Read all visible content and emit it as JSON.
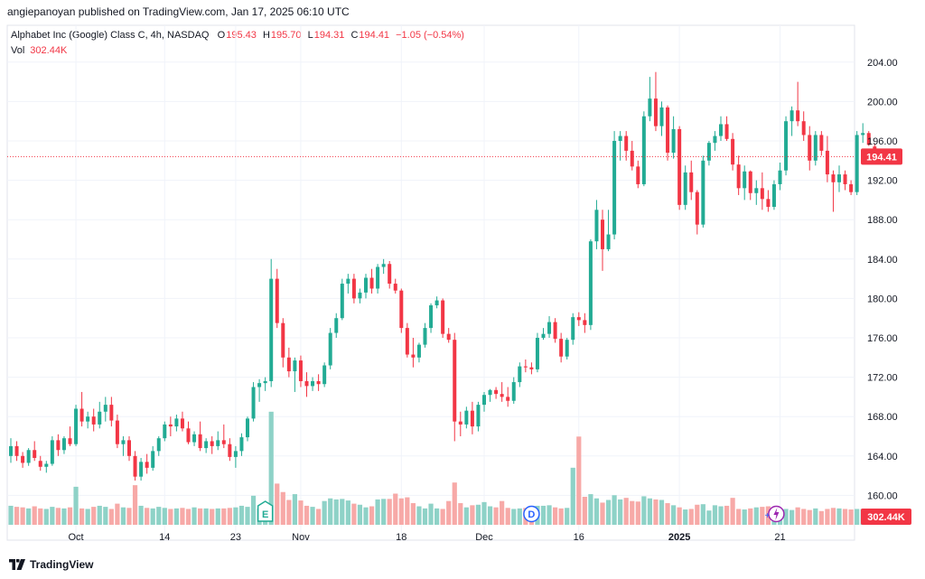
{
  "header": {
    "published": "angiepanoyan published on TradingView.com, Jan 17, 2025 06:10 UTC"
  },
  "legend": {
    "symbol": "Alphabet Inc (Google) Class C, 4h, NASDAQ",
    "o_key": "O",
    "o_val": "195.43",
    "h_key": "H",
    "h_val": "195.70",
    "l_key": "L",
    "l_val": "194.31",
    "c_key": "C",
    "c_val": "194.41",
    "change": "−1.05 (−0.54%)",
    "vol_key": "Vol",
    "vol_val": "302.44K"
  },
  "footer": {
    "brand": "TradingView"
  },
  "colors": {
    "up": "#22ab94",
    "down": "#f23645",
    "vol_up": "#8ed2c7",
    "vol_down": "#f7a9a7"
  },
  "chart_data": {
    "type": "candlestick",
    "symbol": "GOOG",
    "interval": "4h",
    "ylim": [
      157.6,
      206.2
    ],
    "y_ticks": [
      "204.00",
      "200.00",
      "196.00",
      "192.00",
      "188.00",
      "184.00",
      "180.00",
      "176.00",
      "172.00",
      "168.00",
      "164.00",
      "160.00"
    ],
    "x_ticks": [
      {
        "label": "Oct",
        "bar": 11
      },
      {
        "label": "14",
        "bar": 26
      },
      {
        "label": "23",
        "bar": 38
      },
      {
        "label": "Nov",
        "bar": 49
      },
      {
        "label": "18",
        "bar": 66
      },
      {
        "label": "Dec",
        "bar": 80
      },
      {
        "label": "16",
        "bar": 96
      },
      {
        "label": "2025",
        "bar": 113,
        "bold": true
      },
      {
        "label": "21",
        "bar": 130
      }
    ],
    "last_price": "194.41",
    "last_price_value": 194.41,
    "last_volume": "302.44K",
    "markers": [
      {
        "label": "E",
        "bar": 43,
        "kind": "earnings"
      },
      {
        "label": "D",
        "bar": 88,
        "kind": "dividend"
      },
      {
        "label": "⚡",
        "bar": 128,
        "kind": "event"
      }
    ],
    "ohlc": [
      [
        164.0,
        165.8,
        163.3,
        165.0
      ],
      [
        165.0,
        165.5,
        163.5,
        164.0
      ],
      [
        164.0,
        164.4,
        162.8,
        163.3
      ],
      [
        163.3,
        164.8,
        163.0,
        164.6
      ],
      [
        164.6,
        165.5,
        163.5,
        163.8
      ],
      [
        163.5,
        164.0,
        162.5,
        162.9
      ],
      [
        162.9,
        163.5,
        162.3,
        163.2
      ],
      [
        163.2,
        166.0,
        163.0,
        165.6
      ],
      [
        165.6,
        166.2,
        164.0,
        164.6
      ],
      [
        164.6,
        166.0,
        164.2,
        165.8
      ],
      [
        165.8,
        167.0,
        165.0,
        165.2
      ],
      [
        165.2,
        169.2,
        165.0,
        168.8
      ],
      [
        168.8,
        170.5,
        167.0,
        167.5
      ],
      [
        167.5,
        168.5,
        166.8,
        168.0
      ],
      [
        168.0,
        168.8,
        166.5,
        167.2
      ],
      [
        167.2,
        169.5,
        166.8,
        168.5
      ],
      [
        168.5,
        170.0,
        167.5,
        169.2
      ],
      [
        169.2,
        170.0,
        167.0,
        167.6
      ],
      [
        167.6,
        168.2,
        164.8,
        165.2
      ],
      [
        165.2,
        166.0,
        164.0,
        165.6
      ],
      [
        165.6,
        166.0,
        163.5,
        164.0
      ],
      [
        164.0,
        164.5,
        161.5,
        161.9
      ],
      [
        161.9,
        163.8,
        161.5,
        163.4
      ],
      [
        163.4,
        164.2,
        162.2,
        162.8
      ],
      [
        162.8,
        165.0,
        162.5,
        164.5
      ],
      [
        164.5,
        166.0,
        164.0,
        165.8
      ],
      [
        165.8,
        167.5,
        165.5,
        167.2
      ],
      [
        167.2,
        168.0,
        166.0,
        167.0
      ],
      [
        167.0,
        168.2,
        166.5,
        167.8
      ],
      [
        167.8,
        168.5,
        166.5,
        166.8
      ],
      [
        166.8,
        167.5,
        165.2,
        165.4
      ],
      [
        165.4,
        166.5,
        165.0,
        166.2
      ],
      [
        166.2,
        167.5,
        164.5,
        164.8
      ],
      [
        164.8,
        165.8,
        164.3,
        165.5
      ],
      [
        165.5,
        166.0,
        164.2,
        165.0
      ],
      [
        165.0,
        166.5,
        164.6,
        165.6
      ],
      [
        165.6,
        167.2,
        164.8,
        165.2
      ],
      [
        165.2,
        165.8,
        163.5,
        163.9
      ],
      [
        163.9,
        165.0,
        162.8,
        164.5
      ],
      [
        164.5,
        166.3,
        164.0,
        165.9
      ],
      [
        165.9,
        168.0,
        165.5,
        167.8
      ],
      [
        167.8,
        171.5,
        167.5,
        171.0
      ],
      [
        171.0,
        171.8,
        169.5,
        171.4
      ],
      [
        171.4,
        172.0,
        170.6,
        171.6
      ],
      [
        171.6,
        184.0,
        171.0,
        182.0
      ],
      [
        182.0,
        183.0,
        177.0,
        177.5
      ],
      [
        177.5,
        178.0,
        173.0,
        174.0
      ],
      [
        174.0,
        175.0,
        172.0,
        172.6
      ],
      [
        172.6,
        174.0,
        170.5,
        173.7
      ],
      [
        173.7,
        174.2,
        171.0,
        171.6
      ],
      [
        171.6,
        172.5,
        170.0,
        171.1
      ],
      [
        171.1,
        172.0,
        170.6,
        171.6
      ],
      [
        171.6,
        172.3,
        170.6,
        171.3
      ],
      [
        171.3,
        173.5,
        171.0,
        173.2
      ],
      [
        173.2,
        177.0,
        172.8,
        176.5
      ],
      [
        176.5,
        178.5,
        176.0,
        178.0
      ],
      [
        178.0,
        182.0,
        177.8,
        181.5
      ],
      [
        181.5,
        182.5,
        180.5,
        182.0
      ],
      [
        182.0,
        182.5,
        179.5,
        180.0
      ],
      [
        180.0,
        181.0,
        179.5,
        180.6
      ],
      [
        180.6,
        182.5,
        180.0,
        182.1
      ],
      [
        182.1,
        183.0,
        180.5,
        181.0
      ],
      [
        181.0,
        183.5,
        180.5,
        183.2
      ],
      [
        183.2,
        184.0,
        182.5,
        183.5
      ],
      [
        183.5,
        183.8,
        181.0,
        181.5
      ],
      [
        181.5,
        182.0,
        180.5,
        180.8
      ],
      [
        180.8,
        181.0,
        176.5,
        177.0
      ],
      [
        177.0,
        177.5,
        174.0,
        174.3
      ],
      [
        174.3,
        176.0,
        173.0,
        174.0
      ],
      [
        174.0,
        175.5,
        173.5,
        175.3
      ],
      [
        175.3,
        177.5,
        175.0,
        177.0
      ],
      [
        177.0,
        179.5,
        176.5,
        179.3
      ],
      [
        179.3,
        180.2,
        179.0,
        179.8
      ],
      [
        179.8,
        180.0,
        176.0,
        176.4
      ],
      [
        176.4,
        177.0,
        175.5,
        175.8
      ],
      [
        175.8,
        176.5,
        165.5,
        167.5
      ],
      [
        167.5,
        168.5,
        166.0,
        167.2
      ],
      [
        167.2,
        169.0,
        166.8,
        168.6
      ],
      [
        168.6,
        169.5,
        166.2,
        167.0
      ],
      [
        167.0,
        169.5,
        166.5,
        169.2
      ],
      [
        169.2,
        170.5,
        168.5,
        170.2
      ],
      [
        170.2,
        170.8,
        169.5,
        170.7
      ],
      [
        170.7,
        171.0,
        169.8,
        170.3
      ],
      [
        170.3,
        171.5,
        169.5,
        170.0
      ],
      [
        170.0,
        171.0,
        169.0,
        169.6
      ],
      [
        169.6,
        172.0,
        169.3,
        171.5
      ],
      [
        171.5,
        173.5,
        171.0,
        173.1
      ],
      [
        173.1,
        173.8,
        172.5,
        173.0
      ],
      [
        173.0,
        173.5,
        172.3,
        172.8
      ],
      [
        172.8,
        176.5,
        172.5,
        176.0
      ],
      [
        176.0,
        177.0,
        175.8,
        176.4
      ],
      [
        176.4,
        178.2,
        176.0,
        177.6
      ],
      [
        177.6,
        178.0,
        175.5,
        175.9
      ],
      [
        175.9,
        176.5,
        173.5,
        174.1
      ],
      [
        174.1,
        176.0,
        173.8,
        175.8
      ],
      [
        175.8,
        178.5,
        175.3,
        178.1
      ],
      [
        178.1,
        178.6,
        177.2,
        177.8
      ],
      [
        177.8,
        178.5,
        176.5,
        177.3
      ],
      [
        177.3,
        186.0,
        176.8,
        185.8
      ],
      [
        185.8,
        190.0,
        185.0,
        189.0
      ]
    ],
    "ohlc_b": [
      [
        188.0,
        189.0,
        182.8,
        185.0
      ],
      [
        185.0,
        189.0,
        184.8,
        186.5
      ],
      [
        186.5,
        197.0,
        186.0,
        196.0
      ],
      [
        196.0,
        197.0,
        194.0,
        196.5
      ],
      [
        196.5,
        197.0,
        194.0,
        195.0
      ],
      [
        195.0,
        196.0,
        193.0,
        193.4
      ],
      [
        193.4,
        194.0,
        191.2,
        191.6
      ],
      [
        191.6,
        199.0,
        191.4,
        198.5
      ],
      [
        198.5,
        202.5,
        198.0,
        200.3
      ],
      [
        200.3,
        203.0,
        197.0,
        197.5
      ],
      [
        197.5,
        200.0,
        196.5,
        199.4
      ],
      [
        199.4,
        199.6,
        194.0,
        194.8
      ],
      [
        194.8,
        198.5,
        194.2,
        197.2
      ],
      [
        197.2,
        197.5,
        189.0,
        189.5
      ],
      [
        189.5,
        193.5,
        189.0,
        192.8
      ],
      [
        192.8,
        194.0,
        190.0,
        190.8
      ],
      [
        190.8,
        191.0,
        186.5,
        187.5
      ],
      [
        187.5,
        194.5,
        187.2,
        194.0
      ],
      [
        194.0,
        196.0,
        193.5,
        195.8
      ],
      [
        195.8,
        197.0,
        195.0,
        196.5
      ],
      [
        196.5,
        198.5,
        196.0,
        197.7
      ],
      [
        197.7,
        198.5,
        196.0,
        196.2
      ],
      [
        196.2,
        196.8,
        193.0,
        193.6
      ],
      [
        193.6,
        194.5,
        190.5,
        191.2
      ],
      [
        191.2,
        193.5,
        190.0,
        192.9
      ],
      [
        192.9,
        193.0,
        190.0,
        190.7
      ],
      [
        190.7,
        192.0,
        189.5,
        191.2
      ],
      [
        191.2,
        192.8,
        189.0,
        190.1
      ],
      [
        190.1,
        191.0,
        188.8,
        189.3
      ],
      [
        189.3,
        192.0,
        189.0,
        191.6
      ],
      [
        191.6,
        193.8,
        191.0,
        193.0
      ],
      [
        193.0,
        198.5,
        192.5,
        198.0
      ],
      [
        198.0,
        199.5,
        196.5,
        199.1
      ],
      [
        199.1,
        202.0,
        197.5,
        198.0
      ],
      [
        198.0,
        199.0,
        196.0,
        196.6
      ],
      [
        196.6,
        197.5,
        193.0,
        194.0
      ],
      [
        194.0,
        197.0,
        193.5,
        196.6
      ],
      [
        196.6,
        197.0,
        194.5,
        195.0
      ],
      [
        195.0,
        196.5,
        191.8,
        192.6
      ],
      [
        192.6,
        193.0,
        188.8,
        191.8
      ],
      [
        191.8,
        193.5,
        190.8,
        192.6
      ],
      [
        192.6,
        193.0,
        191.0,
        191.6
      ],
      [
        191.6,
        192.0,
        190.5,
        190.8
      ],
      [
        190.8,
        197.0,
        190.5,
        196.6
      ],
      [
        196.6,
        197.8,
        195.8,
        196.8
      ],
      [
        196.8,
        197.0,
        195.5,
        195.6
      ],
      [
        195.43,
        195.7,
        194.31,
        194.41
      ]
    ],
    "volume": [
      0.36,
      0.34,
      0.33,
      0.31,
      0.35,
      0.31,
      0.3,
      0.34,
      0.32,
      0.31,
      0.33,
      0.72,
      0.31,
      0.3,
      0.34,
      0.36,
      0.34,
      0.3,
      0.4,
      0.33,
      0.32,
      0.75,
      0.36,
      0.32,
      0.31,
      0.34,
      0.32,
      0.3,
      0.31,
      0.32,
      0.3,
      0.33,
      0.31,
      0.31,
      0.3,
      0.31,
      0.31,
      0.32,
      0.33,
      0.36,
      0.34,
      0.55,
      0.31,
      0.34,
      2.14,
      0.78,
      0.62,
      0.47,
      0.58,
      0.46,
      0.36,
      0.34,
      0.3,
      0.45,
      0.5,
      0.48,
      0.49,
      0.46,
      0.4,
      0.38,
      0.33,
      0.35,
      0.48,
      0.49,
      0.49,
      0.59,
      0.5,
      0.52,
      0.41,
      0.35,
      0.31,
      0.4,
      0.31,
      0.3,
      0.45,
      0.8,
      0.41,
      0.33,
      0.37,
      0.38,
      0.43,
      0.35,
      0.33,
      0.45,
      0.32,
      0.3,
      0.31,
      0.32,
      0.34,
      0.36,
      0.36,
      0.37,
      0.33,
      0.31,
      0.32,
      1.08,
      1.67,
      0.53,
      0.58,
      0.5,
      0.42,
      0.47,
      0.56,
      0.48,
      0.51,
      0.45,
      0.44,
      0.54,
      0.5,
      0.48,
      0.47,
      0.41,
      0.37,
      0.33,
      0.29,
      0.3,
      0.38,
      0.39,
      0.27,
      0.37,
      0.35,
      0.36,
      0.51,
      0.3,
      0.29,
      0.31,
      0.33,
      0.34,
      0.35,
      0.32,
      0.3,
      0.3,
      0.28,
      0.33,
      0.3,
      0.28,
      0.31,
      0.26,
      0.3,
      0.32,
      0.31,
      0.3,
      0.29,
      0.3,
      0.3,
      0.3,
      0.3
    ]
  }
}
